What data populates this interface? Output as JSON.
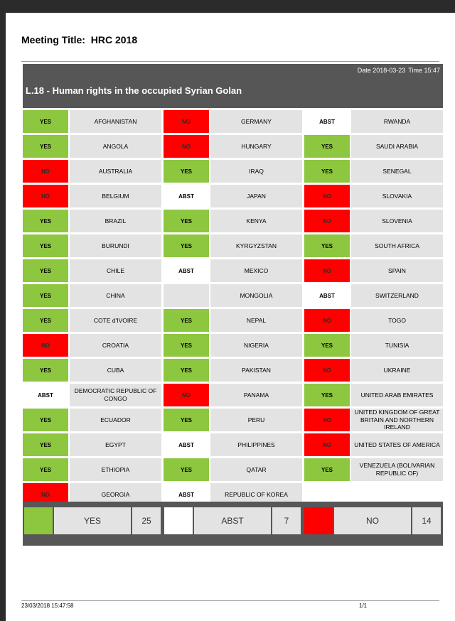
{
  "meeting": {
    "label": "Meeting Title:",
    "value": "HRC 2018"
  },
  "header": {
    "date": "Date 2018-03-23",
    "time": "Time 15:47",
    "resolution": "L.18 - Human rights in the occupied Syrian Golan"
  },
  "colors": {
    "yes": "#8dc63f",
    "no": "#ff0000",
    "abst": "#ffffff",
    "header": "#565656"
  },
  "votes": [
    [
      {
        "vote": "YES",
        "country": "AFGHANISTAN"
      },
      {
        "vote": "YES",
        "country": "ANGOLA"
      },
      {
        "vote": "NO",
        "country": "AUSTRALIA"
      },
      {
        "vote": "NO",
        "country": "BELGIUM"
      },
      {
        "vote": "YES",
        "country": "BRAZIL"
      },
      {
        "vote": "YES",
        "country": "BURUNDI"
      },
      {
        "vote": "YES",
        "country": "CHILE"
      },
      {
        "vote": "YES",
        "country": "CHINA"
      },
      {
        "vote": "YES",
        "country": "COTE d'IVOIRE"
      },
      {
        "vote": "NO",
        "country": "CROATIA"
      },
      {
        "vote": "YES",
        "country": "CUBA"
      },
      {
        "vote": "ABST",
        "country": "DEMOCRATIC REPUBLIC OF CONGO"
      },
      {
        "vote": "YES",
        "country": "ECUADOR"
      },
      {
        "vote": "YES",
        "country": "EGYPT"
      },
      {
        "vote": "YES",
        "country": "ETHIOPIA"
      },
      {
        "vote": "NO",
        "country": "GEORGIA"
      }
    ],
    [
      {
        "vote": "NO",
        "country": "GERMANY"
      },
      {
        "vote": "NO",
        "country": "HUNGARY"
      },
      {
        "vote": "YES",
        "country": "IRAQ"
      },
      {
        "vote": "ABST",
        "country": "JAPAN"
      },
      {
        "vote": "YES",
        "country": "KENYA"
      },
      {
        "vote": "YES",
        "country": "KYRGYZSTAN"
      },
      {
        "vote": "ABST",
        "country": "MEXICO"
      },
      {
        "vote": "",
        "country": "MONGOLIA"
      },
      {
        "vote": "YES",
        "country": "NEPAL"
      },
      {
        "vote": "YES",
        "country": "NIGERIA"
      },
      {
        "vote": "YES",
        "country": "PAKISTAN"
      },
      {
        "vote": "NO",
        "country": "PANAMA"
      },
      {
        "vote": "YES",
        "country": "PERU"
      },
      {
        "vote": "ABST",
        "country": "PHILIPPINES"
      },
      {
        "vote": "YES",
        "country": "QATAR"
      },
      {
        "vote": "ABST",
        "country": "REPUBLIC OF KOREA"
      }
    ],
    [
      {
        "vote": "ABST",
        "country": "RWANDA"
      },
      {
        "vote": "YES",
        "country": "SAUDI ARABIA"
      },
      {
        "vote": "YES",
        "country": "SENEGAL"
      },
      {
        "vote": "NO",
        "country": "SLOVAKIA"
      },
      {
        "vote": "NO",
        "country": "SLOVENIA"
      },
      {
        "vote": "YES",
        "country": "SOUTH AFRICA"
      },
      {
        "vote": "NO",
        "country": "SPAIN"
      },
      {
        "vote": "ABST",
        "country": "SWITZERLAND"
      },
      {
        "vote": "NO",
        "country": "TOGO"
      },
      {
        "vote": "YES",
        "country": "TUNISIA"
      },
      {
        "vote": "NO",
        "country": "UKRAINE"
      },
      {
        "vote": "YES",
        "country": "UNITED ARAB EMIRATES"
      },
      {
        "vote": "NO",
        "country": "UNITED KINGDOM OF GREAT BRITAIN AND NORTHERN IRELAND"
      },
      {
        "vote": "NO",
        "country": "UNITED STATES OF AMERICA"
      },
      {
        "vote": "YES",
        "country": "VENEZUELA (BOLIVARIAN REPUBLIC OF)"
      }
    ]
  ],
  "totals": [
    {
      "label": "YES",
      "count": "25",
      "color": "#8dc63f"
    },
    {
      "label": "ABST",
      "count": "7",
      "color": "#ffffff"
    },
    {
      "label": "NO",
      "count": "14",
      "color": "#ff0000"
    }
  ],
  "footer": {
    "timestamp": "23/03/2018 15:47:58",
    "page": "1/1"
  }
}
